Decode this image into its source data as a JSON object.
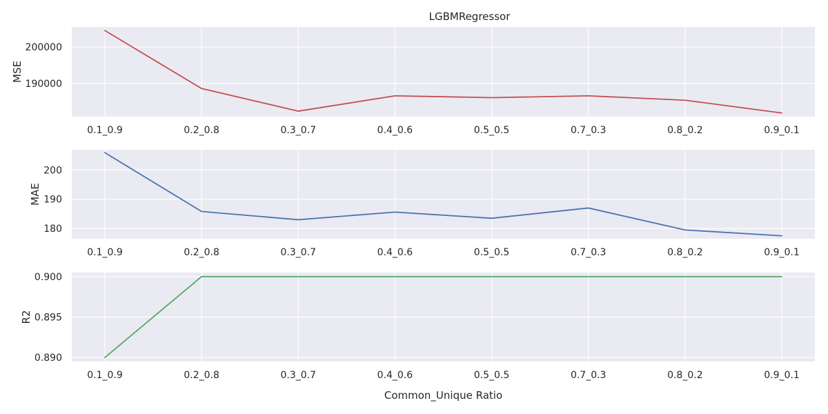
{
  "chart_data": [
    {
      "type": "line",
      "title": "LGBMRegressor",
      "xlabel": "",
      "ylabel": "MSE",
      "categories": [
        "0.1_0.9",
        "0.2_0.8",
        "0.3_0.7",
        "0.4_0.6",
        "0.5_0.5",
        "0.7_0.3",
        "0.8_0.2",
        "0.9_0.1"
      ],
      "series": [
        {
          "values": [
            204500,
            188600,
            182400,
            186600,
            186100,
            186600,
            185400,
            181900
          ]
        }
      ],
      "ylim": [
        180900,
        205500
      ],
      "yticks": [
        190000,
        200000
      ],
      "ytick_labels": [
        "190000",
        "200000"
      ],
      "color": "#c44e52",
      "grid": true,
      "background": "#eaeaf2"
    },
    {
      "type": "line",
      "title": "",
      "xlabel": "",
      "ylabel": "MAE",
      "categories": [
        "0.1_0.9",
        "0.2_0.8",
        "0.3_0.7",
        "0.4_0.6",
        "0.5_0.5",
        "0.7_0.3",
        "0.8_0.2",
        "0.9_0.1"
      ],
      "series": [
        {
          "values": [
            205.9,
            185.8,
            183.0,
            185.6,
            183.5,
            187.0,
            179.5,
            177.5
          ]
        }
      ],
      "ylim": [
        176.5,
        206.9
      ],
      "yticks": [
        180,
        190,
        200
      ],
      "ytick_labels": [
        "180",
        "190",
        "200"
      ],
      "color": "#4c72b0",
      "grid": true,
      "background": "#eaeaf2"
    },
    {
      "type": "line",
      "title": "",
      "xlabel": "Common_Unique Ratio",
      "ylabel": "R2",
      "categories": [
        "0.1_0.9",
        "0.2_0.8",
        "0.3_0.7",
        "0.4_0.6",
        "0.5_0.5",
        "0.7_0.3",
        "0.8_0.2",
        "0.9_0.1"
      ],
      "series": [
        {
          "values": [
            0.89,
            0.9,
            0.9,
            0.9,
            0.9,
            0.9,
            0.9,
            0.9
          ]
        }
      ],
      "ylim": [
        0.8895,
        0.9005
      ],
      "yticks": [
        0.89,
        0.895,
        0.9
      ],
      "ytick_labels": [
        "0.890",
        "0.895",
        "0.900"
      ],
      "color": "#55a868",
      "grid": true,
      "background": "#eaeaf2"
    }
  ]
}
